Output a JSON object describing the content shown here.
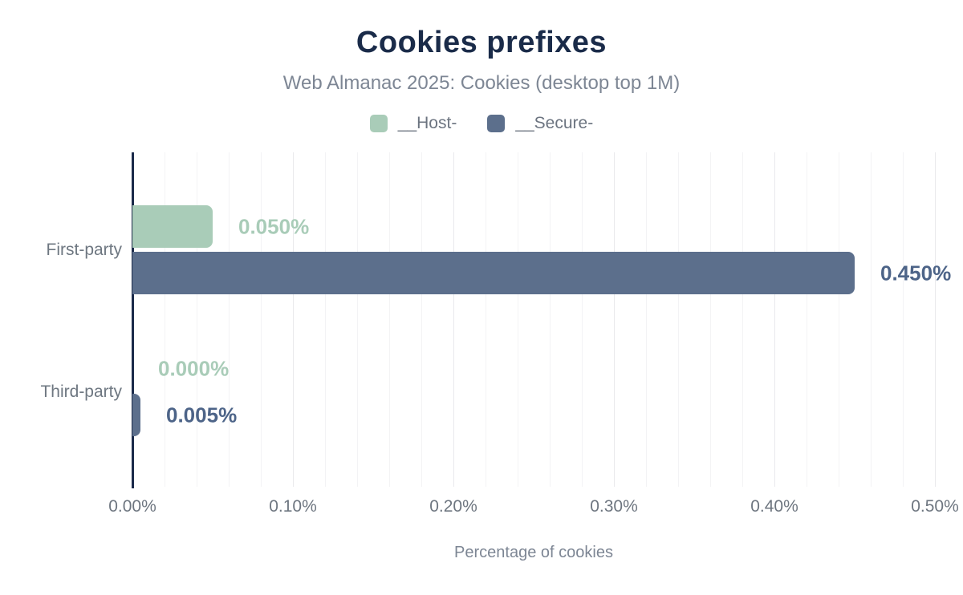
{
  "chart_data": {
    "type": "bar",
    "orientation": "horizontal",
    "title": "Cookies prefixes",
    "subtitle": "Web Almanac 2025: Cookies (desktop top 1M)",
    "xlabel": "Percentage of cookies",
    "categories": [
      "First-party",
      "Third-party"
    ],
    "series": [
      {
        "name": "__Host-",
        "color": "#a9ccb8",
        "label_color": "#a9ccb8",
        "values": [
          0.05,
          0.0
        ],
        "labels": [
          "0.050%",
          "0.000%"
        ]
      },
      {
        "name": "__Secure-",
        "color": "#5c6f8c",
        "label_color": "#4d6488",
        "values": [
          0.45,
          0.005
        ],
        "labels": [
          "0.450%",
          "0.005%"
        ]
      }
    ],
    "x_ticks": [
      {
        "value": 0.0,
        "label": "0.00%"
      },
      {
        "value": 0.1,
        "label": "0.10%"
      },
      {
        "value": 0.2,
        "label": "0.20%"
      },
      {
        "value": 0.3,
        "label": "0.30%"
      },
      {
        "value": 0.4,
        "label": "0.40%"
      },
      {
        "value": 0.5,
        "label": "0.50%"
      }
    ],
    "xlim": [
      0,
      0.51
    ],
    "grid": {
      "minor_step": 0.02,
      "major_step": 0.1,
      "on": true
    },
    "legend_position": "top",
    "colors": {
      "title": "#1a2b49",
      "subtitle": "#7d8694",
      "text": "#6c7480",
      "axis_line": "#1b2a4a",
      "grid_minor": "#f3f3f5",
      "grid_major": "#e9e9ec"
    }
  }
}
